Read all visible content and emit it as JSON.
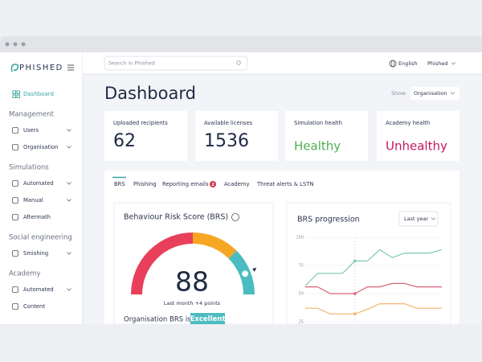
{
  "sidebar": {
    "logo": "PHISHED",
    "dashboard": "Dashboard",
    "sections": [
      {
        "heading": "Management",
        "items": [
          "Users",
          "Organisation"
        ]
      },
      {
        "heading": "Simulations",
        "items": [
          "Automated",
          "Manual",
          "Aftermath"
        ]
      },
      {
        "heading": "Social engineering",
        "items": [
          "Smishing"
        ]
      },
      {
        "heading": "Academy",
        "items": [
          "Automated",
          "Content"
        ]
      }
    ]
  },
  "header": {
    "search": "Search in Phished",
    "language": "English",
    "account": "Phished"
  },
  "page": {
    "title": "Dashboard",
    "show_label": "Show:",
    "show_value": "Organisation"
  },
  "cards": [
    {
      "label": "Uploaded recipients",
      "value": "62"
    },
    {
      "label": "Available licenses",
      "value": "1536"
    },
    {
      "label": "Simulation health",
      "value": "Healthy"
    },
    {
      "label": "Academy health",
      "value": "Unhealthy"
    }
  ],
  "tabs": [
    "BRS",
    "Phishing",
    "Reporting emails",
    "Academy",
    "Threat alerts & LSTN"
  ],
  "tab_badge": "2",
  "gauge": {
    "title": "Behaviour Risk Score (BRS)",
    "value": 88,
    "range": [
      0,
      100
    ],
    "note": "Last month +4 points",
    "status_label": "Organisation BRS is",
    "status": "Excellent"
  },
  "chart_data": {
    "type": "line",
    "title": "BRS progression",
    "period": "Last year",
    "ylim": [
      25,
      100
    ],
    "yticks": [
      100,
      75,
      50,
      25
    ],
    "grid": true,
    "series": [
      {
        "color": "#7fcaa9",
        "values": [
          57,
          68,
          68,
          68,
          79,
          79,
          89,
          82,
          86,
          86,
          86,
          89
        ]
      },
      {
        "color": "#d9637b",
        "values": [
          56,
          56,
          50,
          50,
          50,
          56,
          56,
          59,
          59,
          56,
          56,
          56
        ]
      },
      {
        "color": "#f4b46c",
        "values": [
          37,
          37,
          32,
          32,
          32,
          36,
          41,
          41,
          41,
          37,
          37,
          37
        ]
      }
    ]
  }
}
